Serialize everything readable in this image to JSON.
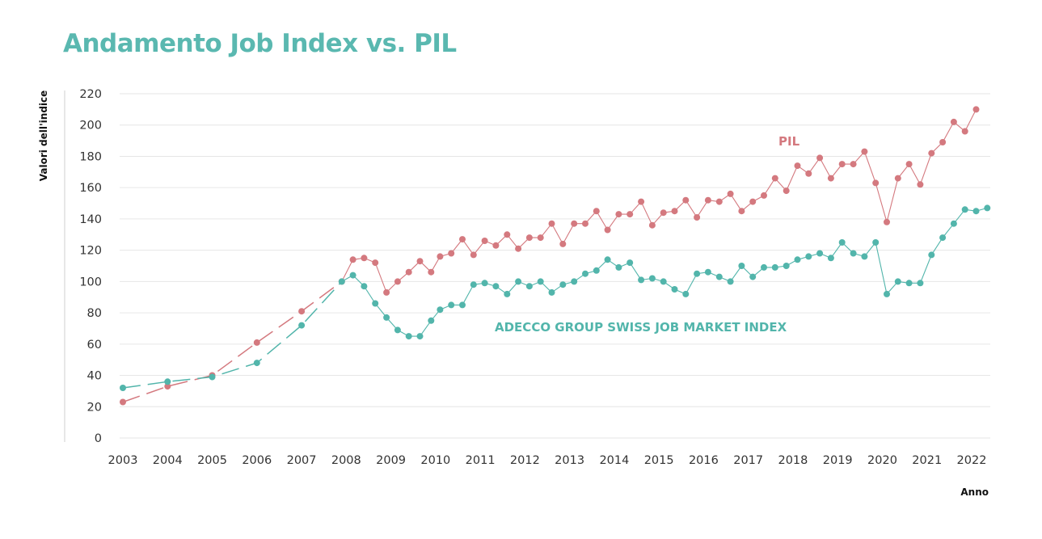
{
  "page": {
    "title": "Andamento Job Index vs. PIL"
  },
  "colors": {
    "title": "#5ab8b0",
    "jobindex": "#52b5ab",
    "pil": "#d4797f",
    "grid": "#e6e6e6",
    "axis": "#cfcfcf"
  },
  "chart_data": {
    "type": "line",
    "title": "Andamento Job Index vs. PIL",
    "ylabel": "Valori dell'indice",
    "xlabel": "Anno",
    "ylim": [
      0,
      220
    ],
    "yticks": [
      0,
      20,
      40,
      60,
      80,
      100,
      120,
      140,
      160,
      180,
      200,
      220
    ],
    "xlim": [
      2003,
      2022
    ],
    "xticks": [
      "2003",
      "2004",
      "2005",
      "2006",
      "2007",
      "2008",
      "2009",
      "2010",
      "2011",
      "2012",
      "2013",
      "2014",
      "2015",
      "2016",
      "2017",
      "2018",
      "2019",
      "2020",
      "2021",
      "2022"
    ],
    "grid": "horizontal",
    "series": [
      {
        "name": "PIL",
        "key": "pil",
        "dashed_until": 2007.9,
        "points": [
          [
            2003.0,
            23
          ],
          [
            2004.0,
            33
          ],
          [
            2005.0,
            40
          ],
          [
            2006.0,
            61
          ],
          [
            2007.0,
            81
          ],
          [
            2007.9,
            100
          ],
          [
            2008.15,
            114
          ],
          [
            2008.4,
            115
          ],
          [
            2008.65,
            112
          ],
          [
            2008.9,
            93
          ],
          [
            2009.15,
            100
          ],
          [
            2009.4,
            106
          ],
          [
            2009.65,
            113
          ],
          [
            2009.9,
            106
          ],
          [
            2010.1,
            116
          ],
          [
            2010.35,
            118
          ],
          [
            2010.6,
            127
          ],
          [
            2010.85,
            117
          ],
          [
            2011.1,
            126
          ],
          [
            2011.35,
            123
          ],
          [
            2011.6,
            130
          ],
          [
            2011.85,
            121
          ],
          [
            2012.1,
            128
          ],
          [
            2012.35,
            128
          ],
          [
            2012.6,
            137
          ],
          [
            2012.85,
            124
          ],
          [
            2013.1,
            137
          ],
          [
            2013.35,
            137
          ],
          [
            2013.6,
            145
          ],
          [
            2013.85,
            133
          ],
          [
            2014.1,
            143
          ],
          [
            2014.35,
            143
          ],
          [
            2014.6,
            151
          ],
          [
            2014.85,
            136
          ],
          [
            2015.1,
            144
          ],
          [
            2015.35,
            145
          ],
          [
            2015.6,
            152
          ],
          [
            2015.85,
            141
          ],
          [
            2016.1,
            152
          ],
          [
            2016.35,
            151
          ],
          [
            2016.6,
            156
          ],
          [
            2016.85,
            145
          ],
          [
            2017.1,
            151
          ],
          [
            2017.35,
            155
          ],
          [
            2017.6,
            166
          ],
          [
            2017.85,
            158
          ],
          [
            2018.1,
            174
          ],
          [
            2018.35,
            169
          ],
          [
            2018.6,
            179
          ],
          [
            2018.85,
            166
          ],
          [
            2019.1,
            175
          ],
          [
            2019.35,
            175
          ],
          [
            2019.6,
            183
          ],
          [
            2019.85,
            163
          ],
          [
            2020.1,
            138
          ],
          [
            2020.35,
            166
          ],
          [
            2020.6,
            175
          ],
          [
            2020.85,
            162
          ],
          [
            2021.1,
            182
          ],
          [
            2021.35,
            189
          ],
          [
            2021.6,
            202
          ],
          [
            2021.85,
            196
          ],
          [
            2022.1,
            210
          ]
        ]
      },
      {
        "name": "ADECCO GROUP SWISS JOB MARKET INDEX",
        "key": "jobindex",
        "dashed_until": 2007.9,
        "points": [
          [
            2003.0,
            32
          ],
          [
            2004.0,
            36
          ],
          [
            2005.0,
            39
          ],
          [
            2006.0,
            48
          ],
          [
            2007.0,
            72
          ],
          [
            2007.9,
            100
          ],
          [
            2008.15,
            104
          ],
          [
            2008.4,
            97
          ],
          [
            2008.65,
            86
          ],
          [
            2008.9,
            77
          ],
          [
            2009.15,
            69
          ],
          [
            2009.4,
            65
          ],
          [
            2009.65,
            65
          ],
          [
            2009.9,
            75
          ],
          [
            2010.1,
            82
          ],
          [
            2010.35,
            85
          ],
          [
            2010.6,
            85
          ],
          [
            2010.85,
            98
          ],
          [
            2011.1,
            99
          ],
          [
            2011.35,
            97
          ],
          [
            2011.6,
            92
          ],
          [
            2011.85,
            100
          ],
          [
            2012.1,
            97
          ],
          [
            2012.35,
            100
          ],
          [
            2012.6,
            93
          ],
          [
            2012.85,
            98
          ],
          [
            2013.1,
            100
          ],
          [
            2013.35,
            105
          ],
          [
            2013.6,
            107
          ],
          [
            2013.85,
            114
          ],
          [
            2014.1,
            109
          ],
          [
            2014.35,
            112
          ],
          [
            2014.6,
            101
          ],
          [
            2014.85,
            102
          ],
          [
            2015.1,
            100
          ],
          [
            2015.35,
            95
          ],
          [
            2015.6,
            92
          ],
          [
            2015.85,
            105
          ],
          [
            2016.1,
            106
          ],
          [
            2016.35,
            103
          ],
          [
            2016.6,
            100
          ],
          [
            2016.85,
            110
          ],
          [
            2017.1,
            103
          ],
          [
            2017.35,
            109
          ],
          [
            2017.6,
            109
          ],
          [
            2017.85,
            110
          ],
          [
            2018.1,
            114
          ],
          [
            2018.35,
            116
          ],
          [
            2018.6,
            118
          ],
          [
            2018.85,
            115
          ],
          [
            2019.1,
            125
          ],
          [
            2019.35,
            118
          ],
          [
            2019.6,
            116
          ],
          [
            2019.85,
            125
          ],
          [
            2020.1,
            92
          ],
          [
            2020.35,
            100
          ],
          [
            2020.6,
            99
          ],
          [
            2020.85,
            99
          ],
          [
            2021.1,
            117
          ],
          [
            2021.35,
            128
          ],
          [
            2021.6,
            137
          ],
          [
            2021.85,
            146
          ],
          [
            2022.1,
            145
          ],
          [
            2022.35,
            147
          ]
        ]
      }
    ]
  }
}
